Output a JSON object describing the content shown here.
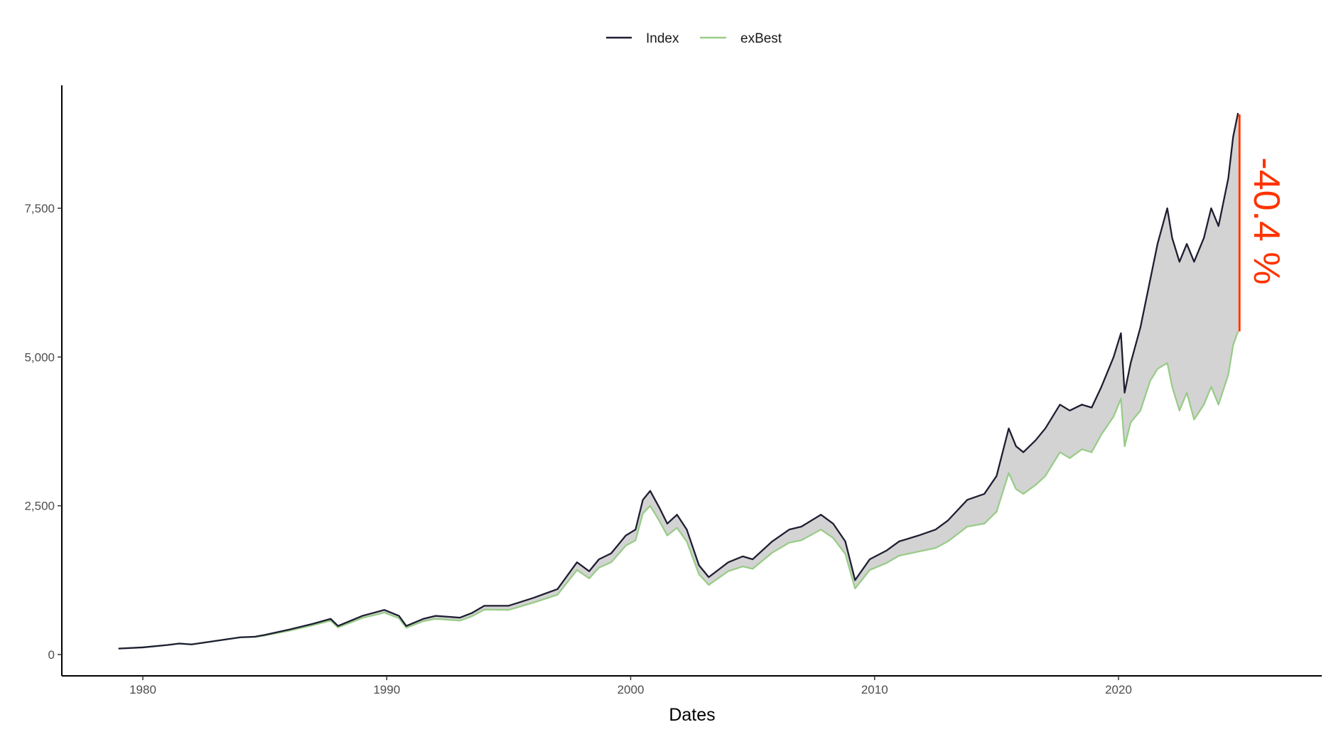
{
  "chart_data": {
    "type": "line",
    "title": "",
    "xlabel": "Dates",
    "ylabel": "",
    "xlim": [
      1976.9,
      2027.4
    ],
    "ylim": [
      -350,
      9600
    ],
    "x_ticks": [
      1980,
      1990,
      2000,
      2010,
      2020
    ],
    "x_tick_labels": [
      "1980",
      "1990",
      "2000",
      "2010",
      "2020"
    ],
    "y_ticks": [
      0,
      2500,
      5000,
      7500
    ],
    "y_tick_labels": [
      "0",
      "2,500",
      "5,000",
      "7,500"
    ],
    "legend": {
      "placement": "top",
      "entries": [
        "Index",
        "exBest"
      ]
    },
    "grid": false,
    "shaded_between_series": true,
    "annotation": {
      "text": "-40.4 %",
      "x": 2024.9,
      "y_from": 9100,
      "y_to": 5430,
      "color": "#ff3300"
    },
    "x": [
      1979,
      1980,
      1981,
      1981.5,
      1982,
      1983,
      1984,
      1984.6,
      1985,
      1986,
      1987,
      1987.7,
      1988,
      1989,
      1989.9,
      1990.5,
      1990.8,
      1991.5,
      1992,
      1993,
      1993.5,
      1994,
      1995,
      1996,
      1997,
      1997.8,
      1998.3,
      1998.7,
      1999.2,
      1999.8,
      2000.2,
      2000.5,
      2000.8,
      2001.2,
      2001.5,
      2001.9,
      2002.3,
      2002.8,
      2003.2,
      2004,
      2004.6,
      2005,
      2005.8,
      2006.5,
      2007,
      2007.8,
      2008.3,
      2008.8,
      2009.2,
      2009.8,
      2010.5,
      2011,
      2011.8,
      2012.5,
      2013,
      2013.8,
      2014.5,
      2015,
      2015.5,
      2015.8,
      2016.1,
      2016.6,
      2017,
      2017.6,
      2018,
      2018.5,
      2018.9,
      2019.3,
      2019.8,
      2020.1,
      2020.25,
      2020.5,
      2020.9,
      2021.3,
      2021.6,
      2022,
      2022.2,
      2022.5,
      2022.8,
      2023.1,
      2023.5,
      2023.8,
      2024.1,
      2024.5,
      2024.7,
      2024.9
    ],
    "series": [
      {
        "name": "Index",
        "color": "#1e1e32",
        "values": [
          100,
          120,
          160,
          185,
          170,
          230,
          290,
          300,
          330,
          420,
          520,
          600,
          480,
          650,
          750,
          650,
          480,
          600,
          650,
          620,
          700,
          820,
          820,
          950,
          1100,
          1550,
          1400,
          1600,
          1700,
          2000,
          2100,
          2600,
          2750,
          2450,
          2200,
          2350,
          2100,
          1500,
          1300,
          1550,
          1650,
          1600,
          1900,
          2100,
          2150,
          2350,
          2200,
          1900,
          1250,
          1600,
          1750,
          1900,
          2000,
          2100,
          2250,
          2600,
          2700,
          3000,
          3800,
          3500,
          3400,
          3600,
          3800,
          4200,
          4100,
          4200,
          4150,
          4500,
          5000,
          5400,
          4400,
          4900,
          5500,
          6300,
          6900,
          7500,
          7000,
          6600,
          6900,
          6600,
          7000,
          7500,
          7200,
          8000,
          8700,
          9100
        ]
      },
      {
        "name": "exBest",
        "color": "#99cc88",
        "values": [
          100,
          120,
          160,
          185,
          170,
          230,
          290,
          295,
          320,
          400,
          495,
          570,
          455,
          615,
          705,
          610,
          450,
          560,
          600,
          570,
          645,
          755,
          750,
          870,
          1005,
          1420,
          1280,
          1460,
          1550,
          1830,
          1920,
          2370,
          2500,
          2230,
          2000,
          2130,
          1900,
          1350,
          1170,
          1400,
          1480,
          1440,
          1710,
          1880,
          1920,
          2100,
          1960,
          1690,
          1110,
          1420,
          1540,
          1660,
          1730,
          1790,
          1900,
          2150,
          2200,
          2400,
          3050,
          2780,
          2700,
          2850,
          3000,
          3400,
          3300,
          3450,
          3400,
          3700,
          4000,
          4300,
          3500,
          3900,
          4100,
          4600,
          4800,
          4900,
          4500,
          4100,
          4400,
          3950,
          4200,
          4500,
          4200,
          4700,
          5200,
          5430
        ]
      }
    ]
  }
}
